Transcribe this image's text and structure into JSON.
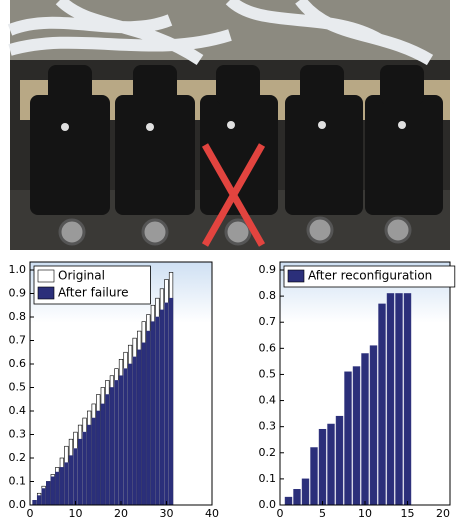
{
  "chart_data": [
    {
      "type": "bar",
      "x": [
        1,
        2,
        3,
        4,
        5,
        6,
        7,
        8,
        9,
        10,
        11,
        12,
        13,
        14,
        15,
        16,
        17,
        18,
        19,
        20,
        21,
        22,
        23,
        24,
        25,
        26,
        27,
        28,
        29,
        30,
        31
      ],
      "series": [
        {
          "name": "Original",
          "color": "#ffffff",
          "values": [
            0.02,
            0.05,
            0.08,
            0.1,
            0.13,
            0.16,
            0.2,
            0.25,
            0.28,
            0.31,
            0.34,
            0.37,
            0.4,
            0.43,
            0.47,
            0.5,
            0.53,
            0.55,
            0.58,
            0.62,
            0.65,
            0.68,
            0.71,
            0.74,
            0.78,
            0.81,
            0.85,
            0.88,
            0.92,
            0.96,
            0.99
          ]
        },
        {
          "name": "After failure",
          "color": "#2b2f7a",
          "values": [
            0.02,
            0.04,
            0.07,
            0.1,
            0.12,
            0.14,
            0.16,
            0.18,
            0.21,
            0.24,
            0.28,
            0.31,
            0.34,
            0.37,
            0.4,
            0.43,
            0.47,
            0.5,
            0.53,
            0.55,
            0.58,
            0.6,
            0.63,
            0.66,
            0.69,
            0.74,
            0.78,
            0.8,
            0.83,
            0.86,
            0.88
          ]
        }
      ],
      "xlim": [
        0,
        40
      ],
      "xticks": [
        0,
        10,
        20,
        30,
        40
      ],
      "ylim": [
        0,
        1
      ],
      "yticks": [
        {
          "value": 0,
          "label": "0.0"
        },
        0.1,
        0.2,
        0.3,
        0.4,
        0.5,
        0.6,
        0.7,
        0.8,
        0.9,
        {
          "value": 1,
          "label": "1.0"
        }
      ],
      "legend": "upper left"
    },
    {
      "type": "bar",
      "x": [
        1,
        2,
        3,
        4,
        5,
        6,
        7,
        8,
        9,
        10,
        11,
        12,
        13,
        14,
        15
      ],
      "series": [
        {
          "name": "After reconfiguration",
          "color": "#2b2f7a",
          "values": [
            0.03,
            0.06,
            0.1,
            0.22,
            0.29,
            0.31,
            0.34,
            0.51,
            0.53,
            0.58,
            0.61,
            0.77,
            0.81,
            0.81,
            0.81
          ]
        }
      ],
      "xlim": [
        0,
        20
      ],
      "xticks": [
        0,
        5,
        10,
        15,
        20
      ],
      "ylim": [
        0,
        0.9
      ],
      "yticks": [
        {
          "value": 0,
          "label": "0.0"
        },
        0.1,
        0.2,
        0.3,
        0.4,
        0.5,
        0.6,
        0.7,
        0.8,
        0.9
      ],
      "legend": "upper left"
    }
  ]
}
